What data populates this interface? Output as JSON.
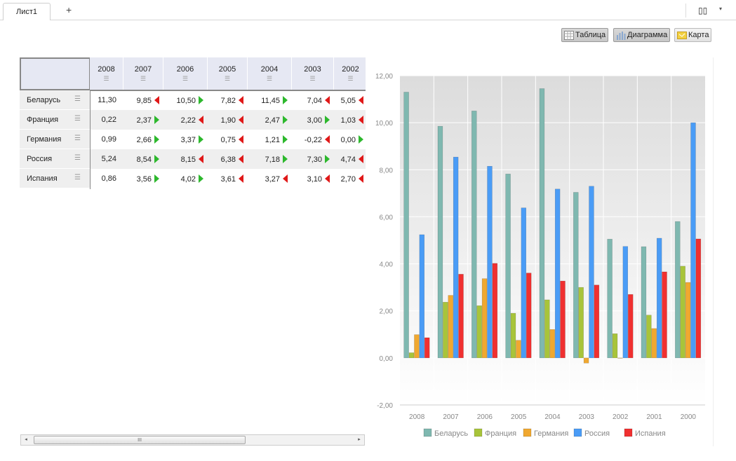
{
  "tabs": {
    "sheet": "Лист1",
    "add": "+"
  },
  "toolbar": {
    "layout_icon": "layout-split-icon",
    "dropdown": "▾"
  },
  "views": {
    "table": "Таблица",
    "chart": "Диаграмма",
    "map": "Карта"
  },
  "table": {
    "columns": [
      "2008",
      "2007",
      "2006",
      "2005",
      "2004",
      "2003",
      "2002"
    ],
    "rows": [
      {
        "label": "Беларусь",
        "cells": [
          [
            "11,30",
            ""
          ],
          [
            "9,85",
            "dn"
          ],
          [
            "10,50",
            "up"
          ],
          [
            "7,82",
            "dn"
          ],
          [
            "11,45",
            "up"
          ],
          [
            "7,04",
            "dn"
          ],
          [
            "5,05",
            "dn"
          ]
        ]
      },
      {
        "label": "Франция",
        "cells": [
          [
            "0,22",
            ""
          ],
          [
            "2,37",
            "up"
          ],
          [
            "2,22",
            "dn"
          ],
          [
            "1,90",
            "dn"
          ],
          [
            "2,47",
            "up"
          ],
          [
            "3,00",
            "up"
          ],
          [
            "1,03",
            "dn"
          ]
        ]
      },
      {
        "label": "Германия",
        "cells": [
          [
            "0,99",
            ""
          ],
          [
            "2,66",
            "up"
          ],
          [
            "3,37",
            "up"
          ],
          [
            "0,75",
            "dn"
          ],
          [
            "1,21",
            "up"
          ],
          [
            "-0,22",
            "dn"
          ],
          [
            "0,00",
            "up"
          ]
        ]
      },
      {
        "label": "Россия",
        "cells": [
          [
            "5,24",
            ""
          ],
          [
            "8,54",
            "up"
          ],
          [
            "8,15",
            "dn"
          ],
          [
            "6,38",
            "dn"
          ],
          [
            "7,18",
            "up"
          ],
          [
            "7,30",
            "up"
          ],
          [
            "4,74",
            "dn"
          ]
        ]
      },
      {
        "label": "Испания",
        "cells": [
          [
            "0,86",
            ""
          ],
          [
            "3,56",
            "up"
          ],
          [
            "4,02",
            "up"
          ],
          [
            "3,61",
            "dn"
          ],
          [
            "3,27",
            "dn"
          ],
          [
            "3,10",
            "dn"
          ],
          [
            "2,70",
            "dn"
          ]
        ]
      }
    ]
  },
  "scrollbar": {
    "grip": "III",
    "left": "◂",
    "right": "▸"
  },
  "chart_data": {
    "type": "bar",
    "categories": [
      "2008",
      "2007",
      "2006",
      "2005",
      "2004",
      "2003",
      "2002",
      "2001",
      "2000"
    ],
    "ylim": [
      -2,
      12
    ],
    "yticks": [
      "-2,00",
      "0,00",
      "2,00",
      "4,00",
      "6,00",
      "8,00",
      "10,00",
      "12,00"
    ],
    "series": [
      {
        "name": "Беларусь",
        "color": "#7fb8b0",
        "values": [
          11.3,
          9.85,
          10.5,
          7.82,
          11.45,
          7.04,
          5.05,
          4.73,
          5.8
        ]
      },
      {
        "name": "Франция",
        "color": "#a8c43a",
        "values": [
          0.22,
          2.37,
          2.22,
          1.9,
          2.47,
          3.0,
          1.03,
          1.82,
          3.9
        ]
      },
      {
        "name": "Германия",
        "color": "#f0a830",
        "values": [
          0.99,
          2.66,
          3.37,
          0.75,
          1.21,
          -0.22,
          0.0,
          1.25,
          3.21
        ]
      },
      {
        "name": "Россия",
        "color": "#4a9cf6",
        "values": [
          5.24,
          8.54,
          8.15,
          6.38,
          7.18,
          7.3,
          4.74,
          5.09,
          10.0
        ]
      },
      {
        "name": "Испания",
        "color": "#f03030",
        "values": [
          0.86,
          3.56,
          4.02,
          3.61,
          3.27,
          3.1,
          2.7,
          3.66,
          5.06
        ]
      }
    ],
    "legend": "bottom"
  }
}
